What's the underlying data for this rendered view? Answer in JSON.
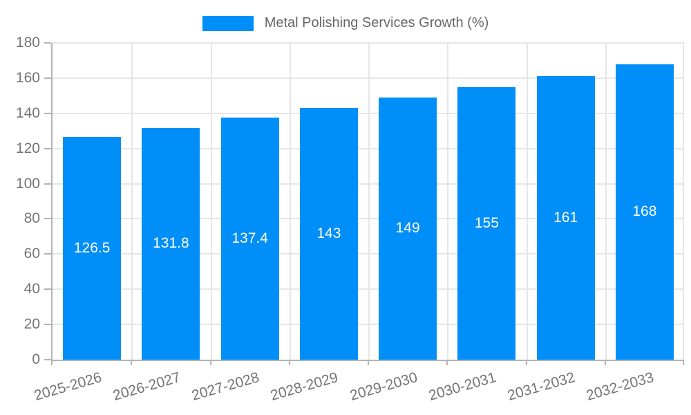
{
  "legend": {
    "label": "Metal Polishing Services Growth (%)"
  },
  "colors": {
    "background": "#ffffff",
    "bar": "#008ff8",
    "grid": "#e6e6e6",
    "axis": "#b3b3b3",
    "tick_text": "#757575",
    "legend_text": "#666666",
    "value_text": "#ffffff"
  },
  "chart_data": {
    "type": "bar",
    "title": "",
    "xlabel": "",
    "ylabel": "",
    "categories": [
      "2025-2026",
      "2026-2027",
      "2027-2028",
      "2028-2029",
      "2029-2030",
      "2030-2031",
      "2031-2032",
      "2032-2033"
    ],
    "values": [
      126.5,
      131.8,
      137.4,
      143,
      149,
      155,
      161,
      168
    ],
    "value_labels": [
      "126.5",
      "131.8",
      "137.4",
      "143",
      "149",
      "155",
      "161",
      "168"
    ],
    "legend_entries": [
      "Metal Polishing Services Growth (%)"
    ],
    "legend_position": "top-center",
    "ylim": [
      0,
      180
    ],
    "yticks": [
      0,
      20,
      40,
      60,
      80,
      100,
      120,
      140,
      160,
      180
    ],
    "grid": true,
    "bar_label_position": "center",
    "x_label_rotation_deg": -16
  }
}
